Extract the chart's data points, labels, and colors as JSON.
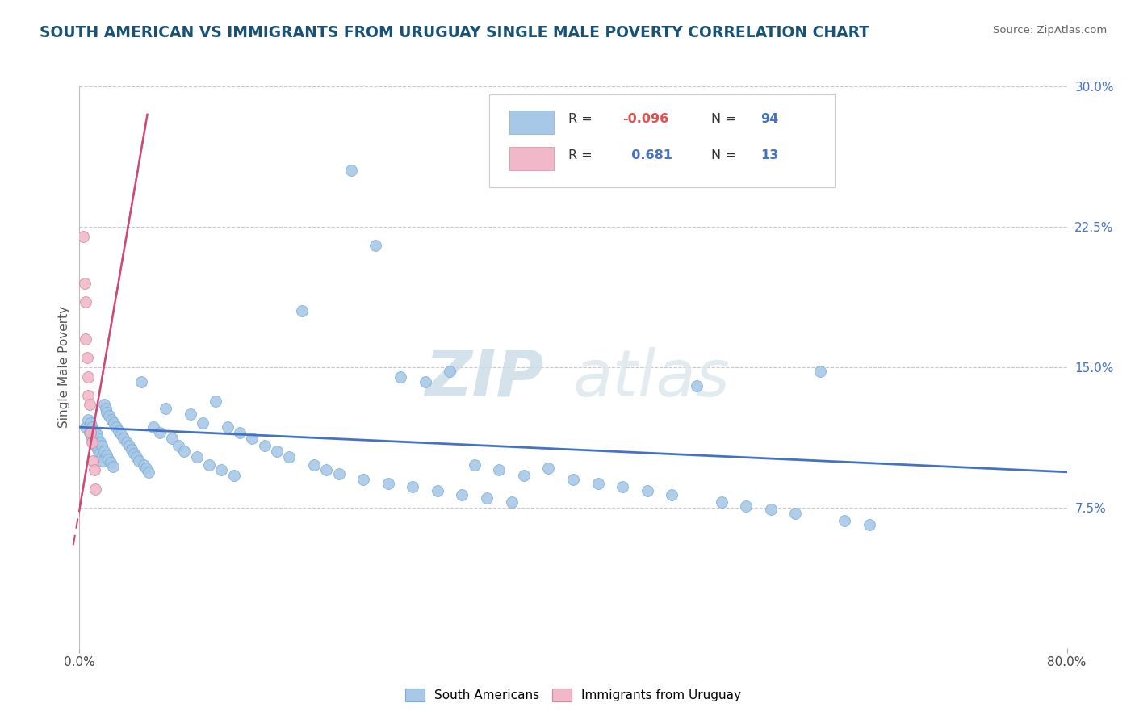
{
  "title": "SOUTH AMERICAN VS IMMIGRANTS FROM URUGUAY SINGLE MALE POVERTY CORRELATION CHART",
  "source": "Source: ZipAtlas.com",
  "ylabel": "Single Male Poverty",
  "watermark_zip": "ZIP",
  "watermark_atlas": "atlas",
  "xlim": [
    0.0,
    0.8
  ],
  "ylim": [
    0.0,
    0.3
  ],
  "ytick_vals": [
    0.075,
    0.15,
    0.225,
    0.3
  ],
  "ytick_labels": [
    "7.5%",
    "15.0%",
    "22.5%",
    "30.0%"
  ],
  "color_sa": "#a8c8e8",
  "color_sa_edge": "#7aaed0",
  "color_uy": "#f0b8c8",
  "color_uy_edge": "#d08898",
  "color_sa_line": "#4472c4",
  "color_uy_line": "#d04878",
  "color_title": "#1a5276",
  "background_color": "#ffffff",
  "grid_color": "#c8c8c8",
  "legend_box_color": "#a8c8e8",
  "legend_box2_color": "#f0b8c8",
  "sa_line_x": [
    0.0,
    0.8
  ],
  "sa_line_y": [
    0.118,
    0.094
  ],
  "uy_line_x": [
    -0.005,
    0.055
  ],
  "uy_line_y": [
    0.055,
    0.285
  ],
  "sa_x": [
    0.005,
    0.007,
    0.008,
    0.009,
    0.01,
    0.01,
    0.011,
    0.012,
    0.013,
    0.014,
    0.015,
    0.015,
    0.016,
    0.017,
    0.018,
    0.018,
    0.019,
    0.02,
    0.02,
    0.021,
    0.022,
    0.022,
    0.023,
    0.024,
    0.025,
    0.026,
    0.027,
    0.028,
    0.03,
    0.032,
    0.034,
    0.036,
    0.038,
    0.04,
    0.042,
    0.044,
    0.046,
    0.048,
    0.05,
    0.052,
    0.054,
    0.056,
    0.06,
    0.065,
    0.07,
    0.075,
    0.08,
    0.085,
    0.09,
    0.095,
    0.1,
    0.105,
    0.11,
    0.115,
    0.12,
    0.125,
    0.13,
    0.14,
    0.15,
    0.16,
    0.17,
    0.18,
    0.19,
    0.2,
    0.21,
    0.22,
    0.23,
    0.24,
    0.25,
    0.26,
    0.27,
    0.28,
    0.29,
    0.3,
    0.31,
    0.32,
    0.33,
    0.34,
    0.35,
    0.36,
    0.38,
    0.4,
    0.42,
    0.44,
    0.46,
    0.48,
    0.5,
    0.52,
    0.54,
    0.56,
    0.58,
    0.6,
    0.62,
    0.64
  ],
  "sa_y": [
    0.118,
    0.122,
    0.115,
    0.12,
    0.112,
    0.118,
    0.11,
    0.116,
    0.108,
    0.114,
    0.106,
    0.112,
    0.104,
    0.11,
    0.102,
    0.108,
    0.1,
    0.13,
    0.105,
    0.128,
    0.103,
    0.126,
    0.101,
    0.124,
    0.099,
    0.122,
    0.097,
    0.12,
    0.118,
    0.116,
    0.114,
    0.112,
    0.11,
    0.108,
    0.106,
    0.104,
    0.102,
    0.1,
    0.142,
    0.098,
    0.096,
    0.094,
    0.118,
    0.115,
    0.128,
    0.112,
    0.108,
    0.105,
    0.125,
    0.102,
    0.12,
    0.098,
    0.132,
    0.095,
    0.118,
    0.092,
    0.115,
    0.112,
    0.108,
    0.105,
    0.102,
    0.18,
    0.098,
    0.095,
    0.093,
    0.255,
    0.09,
    0.215,
    0.088,
    0.145,
    0.086,
    0.142,
    0.084,
    0.148,
    0.082,
    0.098,
    0.08,
    0.095,
    0.078,
    0.092,
    0.096,
    0.09,
    0.088,
    0.086,
    0.084,
    0.082,
    0.14,
    0.078,
    0.076,
    0.074,
    0.072,
    0.148,
    0.068,
    0.066
  ],
  "uy_x": [
    0.003,
    0.004,
    0.005,
    0.005,
    0.006,
    0.007,
    0.007,
    0.008,
    0.009,
    0.01,
    0.011,
    0.012,
    0.013
  ],
  "uy_y": [
    0.22,
    0.195,
    0.185,
    0.165,
    0.155,
    0.145,
    0.135,
    0.13,
    0.115,
    0.11,
    0.1,
    0.095,
    0.085
  ]
}
